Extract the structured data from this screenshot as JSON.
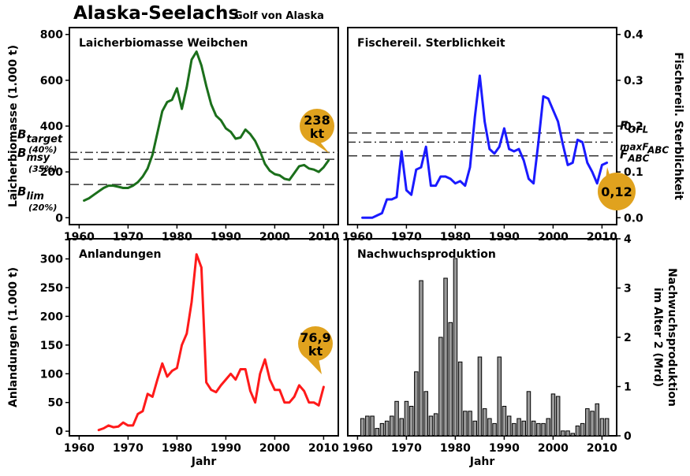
{
  "header": {
    "title": "Alaska-Seelachs",
    "subtitle": "Golf von Alaska"
  },
  "colors": {
    "biomass": "#1b6f1b",
    "mortality": "#1a1aff",
    "catch": "#ff1a1a",
    "recruits": "#9a9a9a",
    "badge": "#e0a21e"
  },
  "chart_data": [
    {
      "type": "line",
      "title": "Laicherbiomasse Weibchen",
      "ylabel": "Laicherbiomasse (1.000 t)",
      "xlabel": "",
      "xlim": [
        1958,
        2013
      ],
      "ylim": [
        -30,
        830
      ],
      "xticks": [
        1960,
        1970,
        1980,
        1990,
        2000,
        2010
      ],
      "yticks": [
        0,
        200,
        400,
        600,
        800
      ],
      "x": [
        1961,
        1962,
        1963,
        1964,
        1965,
        1966,
        1967,
        1968,
        1969,
        1970,
        1971,
        1972,
        1973,
        1974,
        1975,
        1976,
        1977,
        1978,
        1979,
        1980,
        1981,
        1982,
        1983,
        1984,
        1985,
        1986,
        1987,
        1988,
        1989,
        1990,
        1991,
        1992,
        1993,
        1994,
        1995,
        1996,
        1997,
        1998,
        1999,
        2000,
        2001,
        2002,
        2003,
        2004,
        2005,
        2006,
        2007,
        2008,
        2009,
        2010,
        2011
      ],
      "series": [
        {
          "values": [
            75,
            85,
            100,
            115,
            130,
            140,
            140,
            135,
            130,
            130,
            140,
            155,
            180,
            215,
            275,
            370,
            465,
            505,
            515,
            565,
            475,
            570,
            690,
            725,
            665,
            575,
            495,
            445,
            425,
            390,
            375,
            345,
            350,
            385,
            365,
            335,
            290,
            235,
            205,
            190,
            185,
            170,
            165,
            195,
            225,
            230,
            215,
            210,
            200,
            220,
            250
          ]
        }
      ],
      "reference_lines": [
        {
          "label": "B",
          "sub": "target",
          "note": "(40%)",
          "value": 285,
          "style": "dashdot"
        },
        {
          "label": "B",
          "sub": "msy",
          "note": "(35%)",
          "value": 255,
          "style": "dashed"
        },
        {
          "label": "B",
          "sub": "lim",
          "note": "(20%)",
          "value": 145,
          "style": "dashed"
        }
      ],
      "badge": {
        "line1": "238",
        "line2": "kt"
      }
    },
    {
      "type": "line",
      "title": "Fischereil. Sterblichkeit",
      "ylabel": "Fischereil. Sterblichkeit",
      "xlabel": "",
      "xlim": [
        1958,
        2013
      ],
      "ylim": [
        -0.015,
        0.415
      ],
      "xticks": [
        1960,
        1970,
        1980,
        1990,
        2000,
        2010
      ],
      "yticks": [
        0.0,
        0.1,
        0.2,
        0.3,
        0.4
      ],
      "x": [
        1961,
        1962,
        1963,
        1964,
        1965,
        1966,
        1967,
        1968,
        1969,
        1970,
        1971,
        1972,
        1973,
        1974,
        1975,
        1976,
        1977,
        1978,
        1979,
        1980,
        1981,
        1982,
        1983,
        1984,
        1985,
        1986,
        1987,
        1988,
        1989,
        1990,
        1991,
        1992,
        1993,
        1994,
        1995,
        1996,
        1997,
        1998,
        1999,
        2000,
        2001,
        2002,
        2003,
        2004,
        2005,
        2006,
        2007,
        2008,
        2009,
        2010,
        2011
      ],
      "series": [
        {
          "values": [
            0.0,
            0.0,
            0.0,
            0.005,
            0.01,
            0.04,
            0.04,
            0.045,
            0.145,
            0.06,
            0.05,
            0.105,
            0.11,
            0.155,
            0.07,
            0.07,
            0.09,
            0.09,
            0.085,
            0.075,
            0.08,
            0.07,
            0.11,
            0.22,
            0.31,
            0.21,
            0.15,
            0.14,
            0.155,
            0.195,
            0.15,
            0.145,
            0.15,
            0.125,
            0.085,
            0.075,
            0.165,
            0.265,
            0.26,
            0.235,
            0.21,
            0.16,
            0.115,
            0.12,
            0.17,
            0.165,
            0.12,
            0.1,
            0.075,
            0.115,
            0.12
          ]
        }
      ],
      "reference_lines": [
        {
          "label": "F",
          "sub": "OFL",
          "value": 0.185,
          "style": "dashed"
        },
        {
          "label": "maxF",
          "sub": "ABC",
          "value": 0.165,
          "style": "dashdot"
        },
        {
          "label": "F",
          "sub": "ABC",
          "value": 0.135,
          "style": "dashed"
        }
      ],
      "badge": {
        "line1": "0,12",
        "line2": ""
      }
    },
    {
      "type": "line",
      "title": "Anlandungen",
      "ylabel": "Anlandungen  (1.000 t)",
      "xlabel": "Jahr",
      "xlim": [
        1958,
        2013
      ],
      "ylim": [
        -8,
        335
      ],
      "xticks": [
        1960,
        1970,
        1980,
        1990,
        2000,
        2010
      ],
      "yticks": [
        0,
        50,
        100,
        150,
        200,
        250,
        300
      ],
      "x": [
        1964,
        1965,
        1966,
        1967,
        1968,
        1969,
        1970,
        1971,
        1972,
        1973,
        1974,
        1975,
        1976,
        1977,
        1978,
        1979,
        1980,
        1981,
        1982,
        1983,
        1984,
        1985,
        1986,
        1987,
        1988,
        1989,
        1990,
        1991,
        1992,
        1993,
        1994,
        1995,
        1996,
        1997,
        1998,
        1999,
        2000,
        2001,
        2002,
        2003,
        2004,
        2005,
        2006,
        2007,
        2008,
        2009,
        2010
      ],
      "series": [
        {
          "values": [
            2,
            5,
            10,
            7,
            8,
            15,
            10,
            10,
            30,
            35,
            65,
            60,
            90,
            118,
            95,
            105,
            110,
            150,
            170,
            225,
            308,
            285,
            85,
            72,
            68,
            80,
            90,
            100,
            90,
            108,
            108,
            70,
            50,
            100,
            125,
            90,
            72,
            72,
            50,
            50,
            60,
            80,
            70,
            50,
            50,
            45,
            77
          ]
        }
      ],
      "badge": {
        "line1": "76,9",
        "line2": "kt"
      }
    },
    {
      "type": "bar",
      "title": "Nachwuchsproduktion",
      "ylabel": "Nachwuchsproduktion im Alter 2 (Mrd)",
      "ylabel_lines": [
        "Nachwuchsproduktion",
        "im Alter 2 (Mrd)"
      ],
      "xlabel": "Jahr",
      "xlim": [
        1958,
        2013
      ],
      "ylim": [
        0,
        4.0
      ],
      "xticks": [
        1960,
        1970,
        1980,
        1990,
        2000,
        2010
      ],
      "yticks": [
        0,
        1,
        2,
        3,
        4
      ],
      "x": [
        1961,
        1962,
        1963,
        1964,
        1965,
        1966,
        1967,
        1968,
        1969,
        1970,
        1971,
        1972,
        1973,
        1974,
        1975,
        1976,
        1977,
        1978,
        1979,
        1980,
        1981,
        1982,
        1983,
        1984,
        1985,
        1986,
        1987,
        1988,
        1989,
        1990,
        1991,
        1992,
        1993,
        1994,
        1995,
        1996,
        1997,
        1998,
        1999,
        2000,
        2001,
        2002,
        2003,
        2004,
        2005,
        2006,
        2007,
        2008,
        2009,
        2010,
        2011
      ],
      "series": [
        {
          "values": [
            0.35,
            0.4,
            0.4,
            0.15,
            0.25,
            0.3,
            0.4,
            0.7,
            0.35,
            0.7,
            0.6,
            1.3,
            3.15,
            0.9,
            0.4,
            0.45,
            2.0,
            3.2,
            2.3,
            3.6,
            1.5,
            0.5,
            0.5,
            0.3,
            1.6,
            0.55,
            0.35,
            0.25,
            1.6,
            0.6,
            0.4,
            0.25,
            0.35,
            0.3,
            0.9,
            0.3,
            0.25,
            0.25,
            0.35,
            0.85,
            0.8,
            0.1,
            0.1,
            0.05,
            0.2,
            0.25,
            0.55,
            0.5,
            0.65,
            0.35,
            0.35
          ]
        }
      ]
    }
  ]
}
